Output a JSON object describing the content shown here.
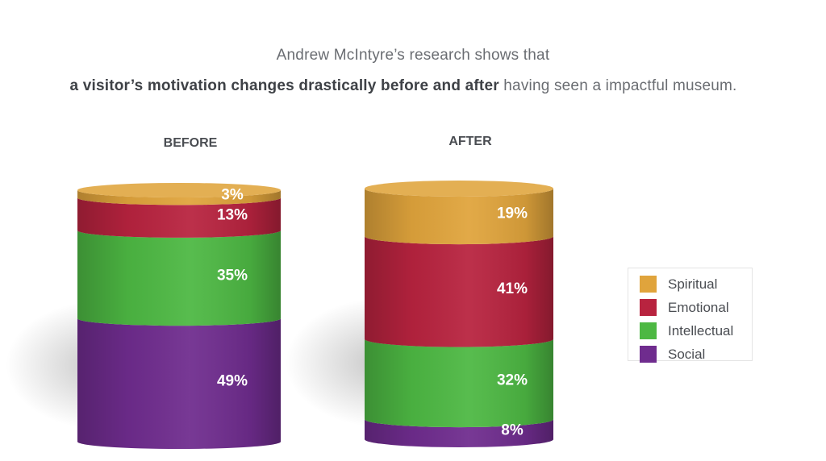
{
  "header": {
    "line1": "Andrew McIntyre’s research shows that",
    "line2_bold": "a visitor’s motivation changes drastically before and after",
    "line2_rest": " having seen a impactful museum."
  },
  "chart_data": {
    "type": "stacked-cylinder",
    "categories": [
      "BEFORE",
      "AFTER"
    ],
    "stack_order_top_to_bottom": [
      "Spiritual",
      "Emotional",
      "Intellectual",
      "Social"
    ],
    "series": [
      {
        "name": "Spiritual",
        "color": "#e0a43c",
        "values": [
          3,
          19
        ]
      },
      {
        "name": "Emotional",
        "color": "#b8233f",
        "values": [
          13,
          41
        ]
      },
      {
        "name": "Intellectual",
        "color": "#4db843",
        "values": [
          35,
          32
        ]
      },
      {
        "name": "Social",
        "color": "#6f2c8e",
        "values": [
          49,
          8
        ]
      }
    ],
    "value_suffix": "%",
    "legend_position": "right"
  }
}
